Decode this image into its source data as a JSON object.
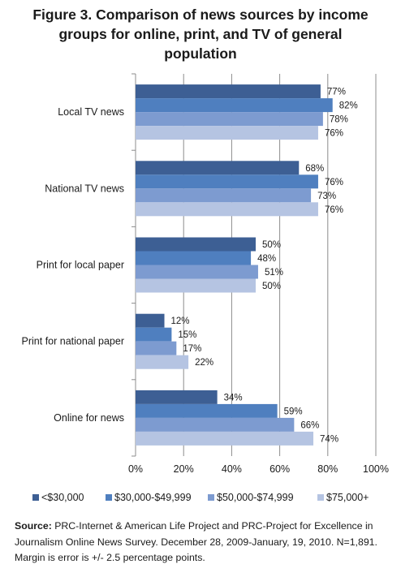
{
  "title": "Figure 3. Comparison of news sources by income groups for online, print, and TV of general population",
  "source": {
    "label": "Source:",
    "text": "PRC-Internet & American Life Project and PRC-Project for Excellence in Journalism Online News Survey. December 28, 2009-January, 19, 2010. N=1,891. Margin is error is +/- 2.5 percentage points."
  },
  "chart_data": {
    "type": "bar",
    "orientation": "horizontal",
    "categories": [
      "Local TV news",
      "National TV news",
      "Print for local paper",
      "Print for national paper",
      "Online for news"
    ],
    "series": [
      {
        "name": "<$30,000",
        "color": "#3d5f94",
        "values": [
          77,
          68,
          50,
          12,
          34
        ]
      },
      {
        "name": "$30,000-$49,999",
        "color": "#4f7fbf",
        "values": [
          82,
          76,
          48,
          15,
          59
        ]
      },
      {
        "name": "$50,000-$74,999",
        "color": "#7d9bd0",
        "values": [
          78,
          73,
          51,
          17,
          66
        ]
      },
      {
        "name": "$75,000+",
        "color": "#b5c4e2",
        "values": [
          76,
          76,
          50,
          22,
          74
        ]
      }
    ],
    "xlim": [
      0,
      100
    ],
    "x_ticks": [
      "0%",
      "20%",
      "40%",
      "60%",
      "80%",
      "100%"
    ],
    "value_suffix": "%",
    "grid": "vertical",
    "legend_position": "bottom"
  }
}
